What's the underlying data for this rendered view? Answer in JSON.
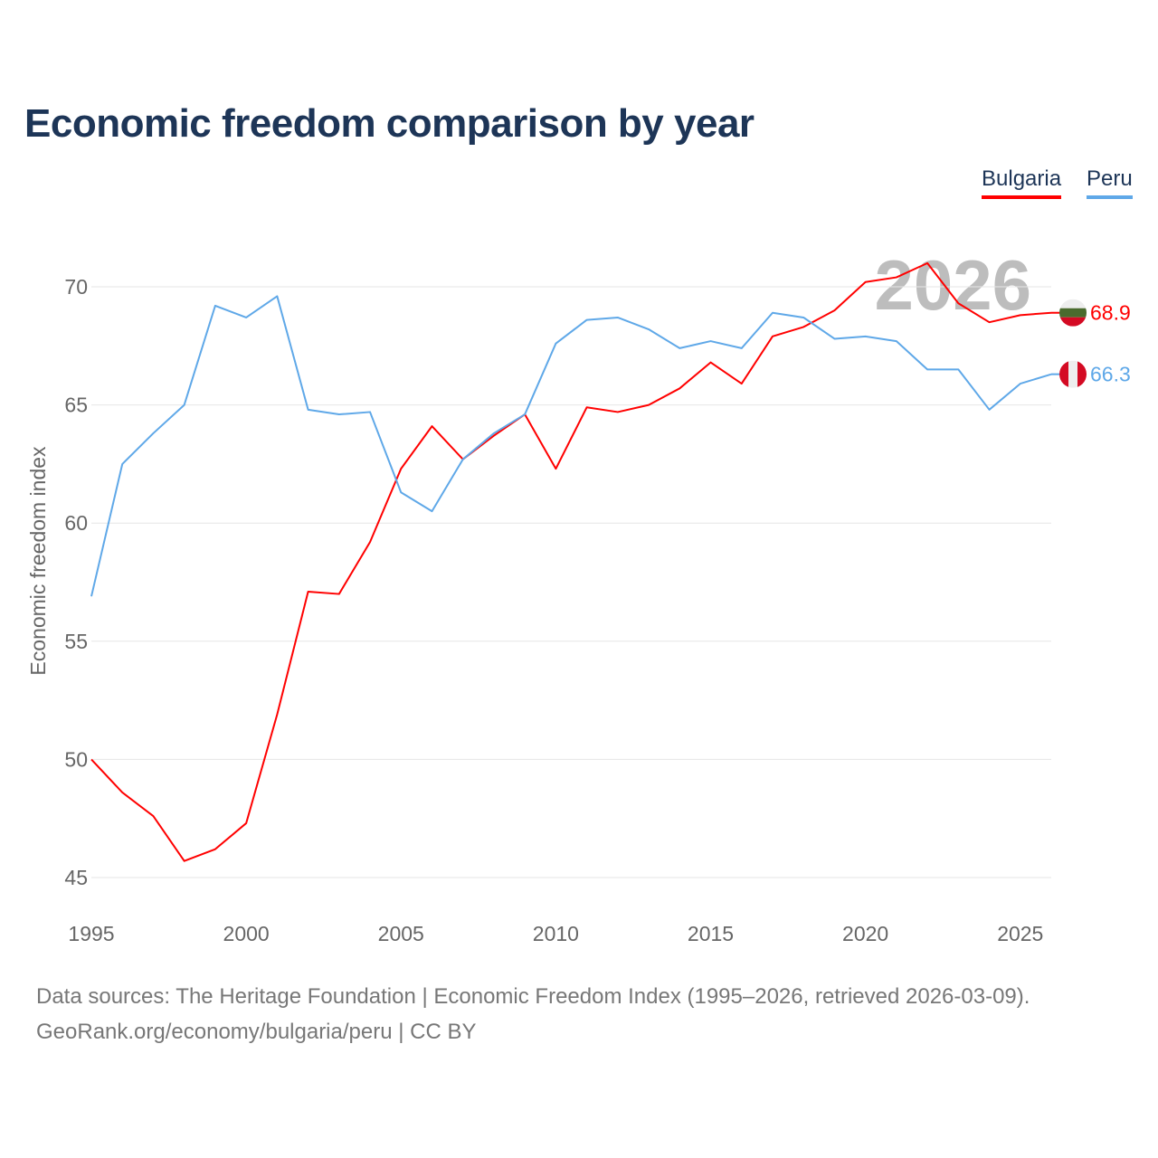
{
  "chart_data": {
    "type": "line",
    "title": "Economic freedom comparison by year",
    "xlabel": "",
    "ylabel": "Economic freedom index",
    "xlim": [
      1995,
      2026
    ],
    "ylim": [
      45,
      72
    ],
    "yticks": [
      45,
      50,
      55,
      60,
      65,
      70
    ],
    "xticks": [
      1995,
      2000,
      2005,
      2010,
      2015,
      2020,
      2025
    ],
    "grid": true,
    "legend_position": "top-right",
    "year_watermark": "2026",
    "x": [
      1995,
      1996,
      1997,
      1998,
      1999,
      2000,
      2001,
      2002,
      2003,
      2004,
      2005,
      2006,
      2007,
      2008,
      2009,
      2010,
      2011,
      2012,
      2013,
      2014,
      2015,
      2016,
      2017,
      2018,
      2019,
      2020,
      2021,
      2022,
      2023,
      2024,
      2025,
      2026
    ],
    "series": [
      {
        "name": "Bulgaria",
        "color": "#ff0000",
        "end_label": "68.9",
        "values": [
          50.0,
          48.6,
          47.6,
          45.7,
          46.2,
          47.3,
          51.9,
          57.1,
          57.0,
          59.2,
          62.3,
          64.1,
          62.7,
          63.7,
          64.6,
          62.3,
          64.9,
          64.7,
          65.0,
          65.7,
          66.8,
          65.9,
          67.9,
          68.3,
          69.0,
          70.2,
          70.4,
          71.0,
          69.3,
          68.5,
          68.8,
          68.9
        ]
      },
      {
        "name": "Peru",
        "color": "#5fa8e8",
        "end_label": "66.3",
        "values": [
          56.9,
          62.5,
          63.8,
          65.0,
          69.2,
          68.7,
          69.6,
          64.8,
          64.6,
          64.7,
          61.3,
          60.5,
          62.7,
          63.8,
          64.6,
          67.6,
          68.6,
          68.7,
          68.2,
          67.4,
          67.7,
          67.4,
          68.9,
          68.7,
          67.8,
          67.9,
          67.7,
          66.5,
          66.5,
          64.8,
          65.9,
          66.3
        ]
      }
    ]
  },
  "footer": {
    "source_line": "Data sources: The Heritage Foundation | Economic Freedom Index (1995–2026, retrieved 2026-03-09).",
    "credit_line": "GeoRank.org/economy/bulgaria/peru | CC BY"
  }
}
